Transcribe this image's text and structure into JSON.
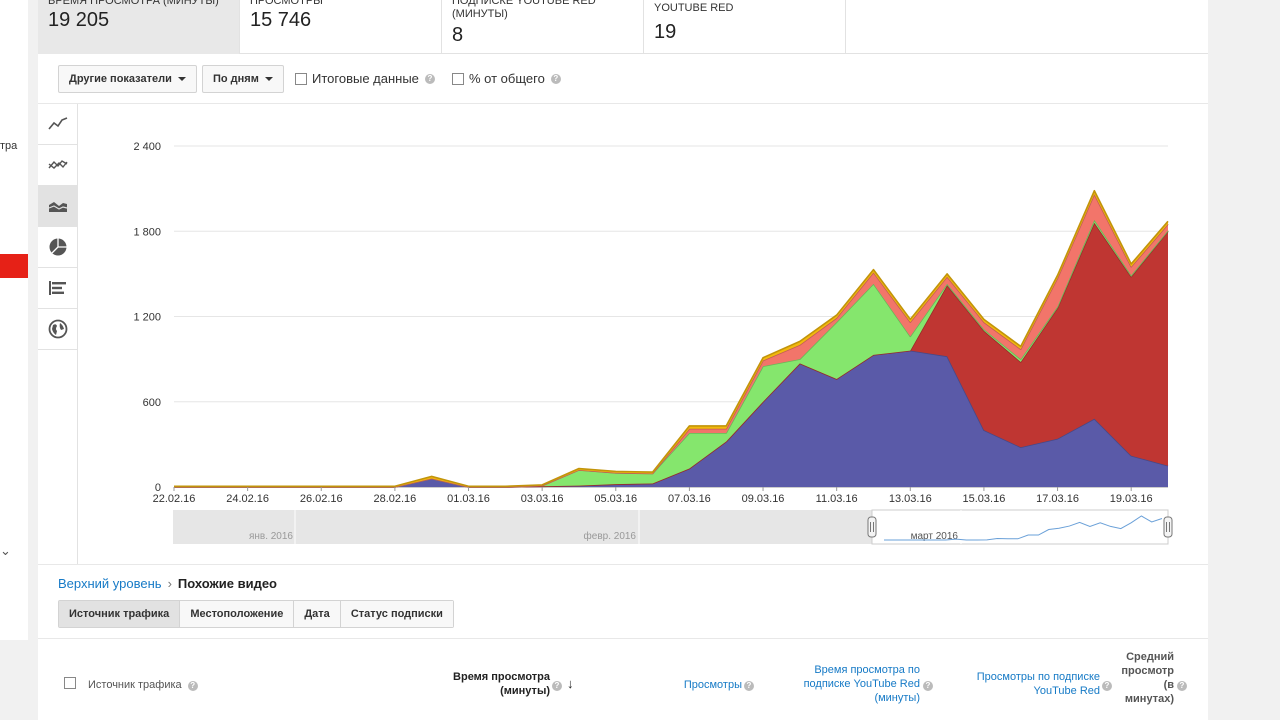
{
  "sidebar": {
    "cut_text": "тра"
  },
  "metrics": [
    {
      "label": "ВРЕМЯ ПРОСМОТРА (МИНУТЫ)",
      "value": "19 205"
    },
    {
      "label": "ПРОСМОТРЫ",
      "value": "15 746"
    },
    {
      "label": "ПОДПИСКЕ YOUTUBE RED (МИНУТЫ)",
      "value": "8"
    },
    {
      "label": "YOUTUBE RED",
      "value": "19"
    }
  ],
  "toolbar": {
    "other_metrics": "Другие показатели",
    "by_days": "По дням",
    "totals_label": "Итоговые данные",
    "percent_label": "% от общего"
  },
  "chart_data": {
    "type": "area",
    "stacked": true,
    "x": [
      "22.02.16",
      "23.02.16",
      "24.02.16",
      "25.02.16",
      "26.02.16",
      "27.02.16",
      "28.02.16",
      "29.02.16",
      "01.03.16",
      "02.03.16",
      "03.03.16",
      "04.03.16",
      "05.03.16",
      "06.03.16",
      "07.03.16",
      "08.03.16",
      "09.03.16",
      "10.03.16",
      "11.03.16",
      "12.03.16",
      "13.03.16",
      "14.03.16",
      "15.03.16",
      "16.03.16",
      "17.03.16",
      "18.03.16",
      "19.03.16",
      "20.03.16"
    ],
    "x_tick_labels": [
      "22.02.16",
      "24.02.16",
      "26.02.16",
      "28.02.16",
      "01.03.16",
      "03.03.16",
      "05.03.16",
      "07.03.16",
      "09.03.16",
      "11.03.16",
      "13.03.16",
      "15.03.16",
      "17.03.16",
      "19.03.16"
    ],
    "y_ticks": [
      "0",
      "600",
      "1 200",
      "1 800",
      "2 400"
    ],
    "ylim": [
      0,
      2400
    ],
    "grid": true,
    "series": [
      {
        "color": "#5a5aa8",
        "values": [
          0,
          0,
          0,
          0,
          0,
          0,
          0,
          60,
          0,
          0,
          5,
          10,
          20,
          25,
          130,
          320,
          600,
          870,
          760,
          930,
          960,
          920,
          400,
          280,
          340,
          480,
          220,
          150
        ]
      },
      {
        "color": "#bf3632",
        "values": [
          0,
          0,
          0,
          0,
          0,
          0,
          0,
          0,
          0,
          0,
          0,
          0,
          0,
          0,
          0,
          0,
          0,
          0,
          0,
          0,
          0,
          500,
          700,
          600,
          920,
          1380,
          1260,
          1650
        ]
      },
      {
        "color": "#85e66d",
        "values": [
          0,
          0,
          0,
          0,
          0,
          0,
          0,
          0,
          0,
          0,
          5,
          110,
          80,
          70,
          250,
          60,
          250,
          30,
          400,
          500,
          100,
          10,
          10,
          20,
          10,
          20,
          10,
          5
        ]
      },
      {
        "color": "#f2756a",
        "values": [
          0,
          0,
          0,
          0,
          0,
          0,
          0,
          0,
          0,
          0,
          0,
          0,
          0,
          0,
          30,
          30,
          40,
          100,
          30,
          80,
          100,
          50,
          50,
          70,
          200,
          180,
          60,
          45
        ]
      },
      {
        "color": "#f2b90d",
        "values": [
          5,
          5,
          5,
          5,
          5,
          5,
          5,
          15,
          5,
          5,
          5,
          10,
          10,
          10,
          20,
          20,
          20,
          25,
          20,
          20,
          20,
          20,
          20,
          20,
          20,
          25,
          20,
          20
        ]
      }
    ],
    "navigator_labels": [
      "янв. 2016",
      "февр. 2016",
      "март 2016"
    ]
  },
  "breadcrumb": {
    "root": "Верхний уровень",
    "sep": "›",
    "current": "Похожие видео"
  },
  "tabs": [
    "Источник трафика",
    "Местоположение",
    "Дата",
    "Статус подписки"
  ],
  "table": {
    "col_source": "Источник трафика",
    "col_watch_time": "Время просмотра (минуты)",
    "col_views": "Просмотры",
    "col_red_watch_time": "Время просмотра по подписке YouTube Red (минуты)",
    "col_red_views": "Просмотры по подписке YouTube Red",
    "col_avg": "Средний просмотр (в минутах)"
  }
}
